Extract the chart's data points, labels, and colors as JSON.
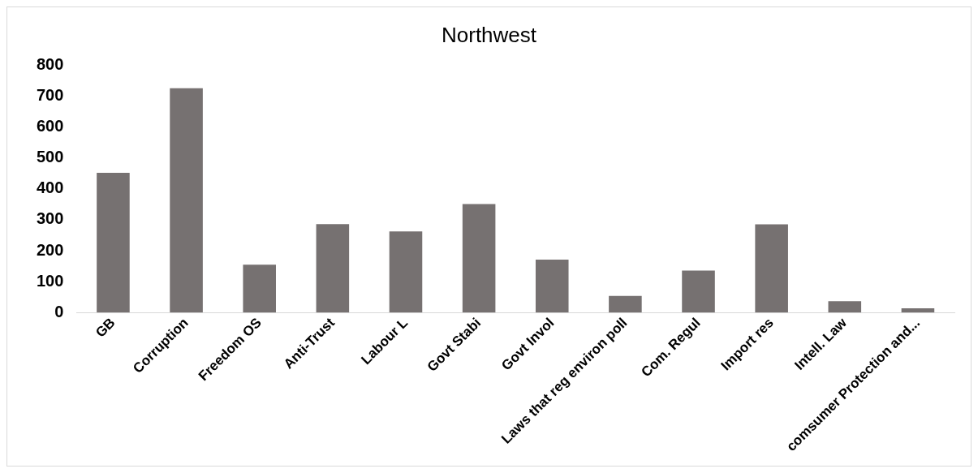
{
  "chart_data": {
    "type": "bar",
    "title": "Northwest",
    "categories": [
      "GB",
      "Corruption",
      "Freedom OS",
      "Anti-Trust",
      "Labour L",
      "Govt Stabi",
      "Govt Invol",
      "Laws that reg environ poll",
      "Com. Regul",
      "Import res",
      "Intell. Law",
      "comsumer Protection and..."
    ],
    "values": [
      452,
      725,
      155,
      286,
      262,
      351,
      171,
      54,
      136,
      285,
      37,
      14
    ],
    "color": "#767171",
    "ylim": [
      0,
      800
    ],
    "yticks": [
      0,
      100,
      200,
      300,
      400,
      500,
      600,
      700,
      800
    ],
    "grid": false
  }
}
